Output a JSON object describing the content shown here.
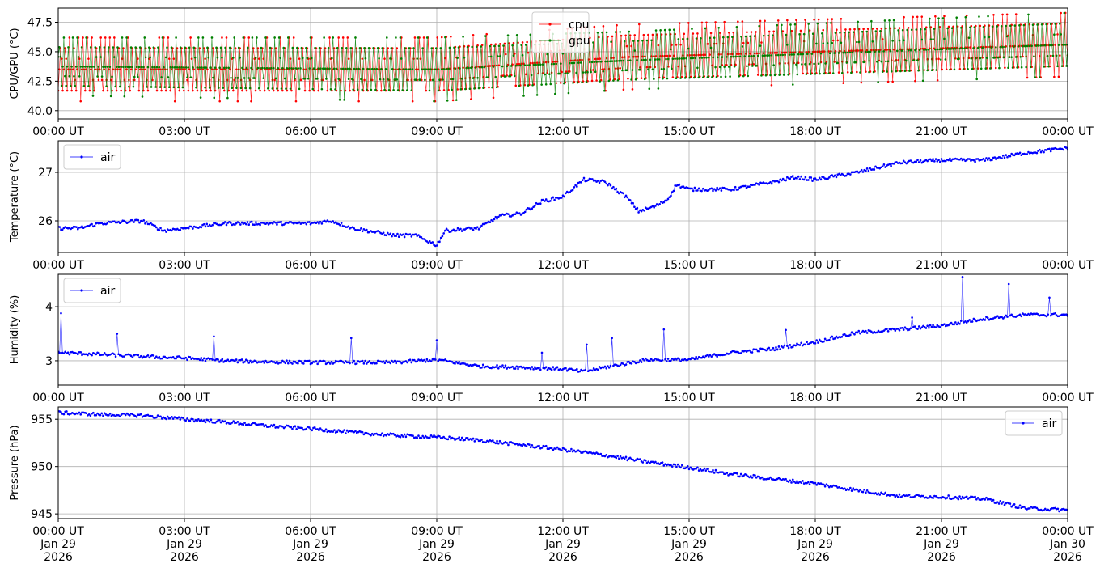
{
  "chart_data": [
    {
      "type": "line",
      "ylabel": "CPU/GPU (°C)",
      "x_range": [
        "2026-01-29T00:00Z",
        "2026-01-30T00:00Z"
      ],
      "ylim": [
        39.3,
        48.7
      ],
      "yticks": [
        40.0,
        42.5,
        45.0,
        47.5
      ],
      "ytick_labels": [
        "40.0",
        "42.5",
        "45.0",
        "47.5"
      ],
      "xtick_labels": [
        "00:00 UT",
        "03:00 UT",
        "06:00 UT",
        "09:00 UT",
        "12:00 UT",
        "15:00 UT",
        "18:00 UT",
        "21:00 UT",
        "00:00 UT"
      ],
      "grid": true,
      "legend_position": "top-center",
      "series": [
        {
          "name": "cpu",
          "color": "#ff0000",
          "pattern": "oscillating",
          "x_hours": [
            0,
            9,
            13.5,
            24
          ],
          "values_low": [
            40.8,
            40.8,
            41.8,
            42.9
          ],
          "values_high": [
            46.2,
            46.2,
            47.3,
            48.3
          ]
        },
        {
          "name": "gpu",
          "color": "#008000",
          "pattern": "oscillating",
          "x_hours": [
            0,
            9,
            13.5,
            24
          ],
          "values_low": [
            41.3,
            40.8,
            41.8,
            42.9
          ],
          "values_high": [
            46.2,
            46.2,
            46.7,
            48.3
          ]
        }
      ]
    },
    {
      "type": "line",
      "ylabel": "Temperature (°C)",
      "x_range": [
        "2026-01-29T00:00Z",
        "2026-01-30T00:00Z"
      ],
      "ylim": [
        25.35,
        27.65
      ],
      "yticks": [
        26,
        27
      ],
      "ytick_labels": [
        "26",
        "27"
      ],
      "xtick_labels": [
        "00:00 UT",
        "03:00 UT",
        "06:00 UT",
        "09:00 UT",
        "12:00 UT",
        "15:00 UT",
        "18:00 UT",
        "21:00 UT",
        "00:00 UT"
      ],
      "grid": true,
      "legend_position": "top-left",
      "series": [
        {
          "name": "air",
          "color": "#0000ff",
          "x_hours": [
            0,
            0.5,
            1,
            2,
            2.5,
            3,
            4,
            5,
            6,
            6.5,
            7,
            8,
            8.5,
            9,
            9.2,
            10,
            10.5,
            11,
            11.5,
            12,
            12.5,
            13,
            13.5,
            13.8,
            14.2,
            14.5,
            14.7,
            15,
            16,
            17,
            17.5,
            18,
            19,
            20,
            21,
            21.5,
            22,
            23,
            24
          ],
          "values": [
            25.85,
            25.85,
            25.95,
            26.0,
            25.8,
            25.85,
            25.95,
            25.95,
            25.95,
            26.0,
            25.85,
            25.7,
            25.7,
            25.5,
            25.8,
            25.85,
            26.1,
            26.15,
            26.4,
            26.5,
            26.85,
            26.8,
            26.5,
            26.2,
            26.3,
            26.45,
            26.75,
            26.65,
            26.65,
            26.8,
            26.9,
            26.85,
            27.0,
            27.2,
            27.25,
            27.25,
            27.25,
            27.4,
            27.5
          ]
        }
      ]
    },
    {
      "type": "line",
      "ylabel": "Humidity (%)",
      "x_range": [
        "2026-01-29T00:00Z",
        "2026-01-30T00:00Z"
      ],
      "ylim": [
        2.55,
        4.6
      ],
      "yticks": [
        3,
        4
      ],
      "ytick_labels": [
        "3",
        "4"
      ],
      "xtick_labels": [
        "00:00 UT",
        "03:00 UT",
        "06:00 UT",
        "09:00 UT",
        "12:00 UT",
        "15:00 UT",
        "18:00 UT",
        "21:00 UT",
        "00:00 UT"
      ],
      "grid": true,
      "legend_position": "top-left",
      "series": [
        {
          "name": "air",
          "color": "#0000ff",
          "x_hours": [
            0,
            1,
            2,
            3,
            4,
            5,
            6,
            7,
            8,
            9,
            10,
            11,
            12,
            12.5,
            13,
            14,
            15,
            16,
            17,
            18,
            19,
            20,
            21,
            22,
            23,
            24
          ],
          "values": [
            3.15,
            3.12,
            3.08,
            3.05,
            3.0,
            2.98,
            2.97,
            2.97,
            2.97,
            3.02,
            2.9,
            2.88,
            2.85,
            2.8,
            2.88,
            3.02,
            3.02,
            3.15,
            3.22,
            3.35,
            3.52,
            3.58,
            3.65,
            3.78,
            3.85,
            3.85
          ],
          "spikes": [
            [
              0.08,
              3.88
            ],
            [
              1.4,
              3.5
            ],
            [
              3.7,
              3.45
            ],
            [
              6.95,
              3.42
            ],
            [
              9.0,
              3.38
            ],
            [
              11.5,
              3.15
            ],
            [
              12.55,
              3.3
            ],
            [
              13.15,
              3.42
            ],
            [
              14.4,
              3.58
            ],
            [
              17.3,
              3.57
            ],
            [
              20.3,
              3.8
            ],
            [
              21.5,
              4.55
            ],
            [
              22.6,
              4.42
            ],
            [
              23.55,
              4.17
            ]
          ]
        }
      ]
    },
    {
      "type": "line",
      "ylabel": "Pressure (hPa)",
      "x_range": [
        "2026-01-29T00:00Z",
        "2026-01-30T00:00Z"
      ],
      "ylim": [
        944.5,
        956.3
      ],
      "yticks": [
        945,
        950,
        955
      ],
      "ytick_labels": [
        "945",
        "950",
        "955"
      ],
      "xtick_labels": [
        "00:00 UT\nJan 29\n2026",
        "03:00 UT\nJan 29\n2026",
        "06:00 UT\nJan 29\n2026",
        "09:00 UT\nJan 29\n2026",
        "12:00 UT\nJan 29\n2026",
        "15:00 UT\nJan 29\n2026",
        "18:00 UT\nJan 29\n2026",
        "21:00 UT\nJan 29\n2026",
        "00:00 UT\nJan 30\n2026"
      ],
      "grid": true,
      "legend_position": "top-right",
      "series": [
        {
          "name": "air",
          "color": "#0000ff",
          "x_hours": [
            0,
            1,
            2,
            3,
            4,
            5,
            6,
            7,
            8,
            9,
            10,
            11,
            12,
            13,
            14,
            15,
            16,
            17,
            18,
            19,
            20,
            21,
            22,
            23,
            24
          ],
          "values": [
            955.7,
            955.5,
            955.4,
            955.0,
            954.7,
            954.3,
            954.0,
            953.6,
            953.3,
            953.1,
            952.8,
            952.3,
            951.8,
            951.2,
            950.5,
            949.9,
            949.2,
            948.7,
            948.2,
            947.5,
            946.9,
            946.8,
            946.6,
            945.6,
            945.4
          ]
        }
      ]
    }
  ]
}
